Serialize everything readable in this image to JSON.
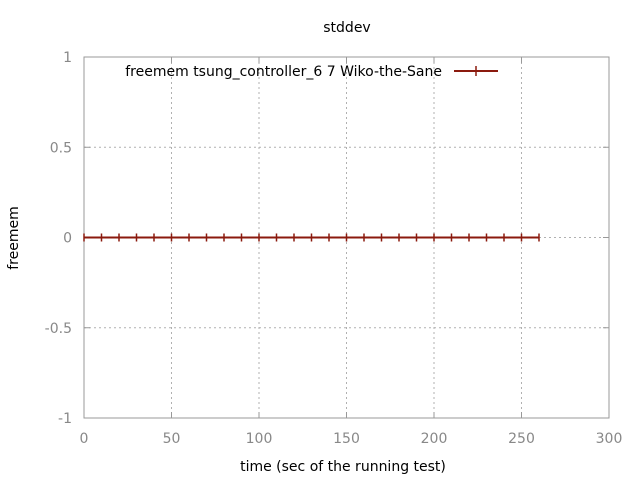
{
  "chart_data": {
    "type": "line",
    "title": "stddev",
    "xlabel": "time (sec of the running test)",
    "ylabel": "freemem",
    "xlim": [
      0,
      300
    ],
    "ylim": [
      -1,
      1
    ],
    "xticks": [
      0,
      50,
      100,
      150,
      200,
      250,
      300
    ],
    "yticks": [
      -1,
      -0.5,
      0,
      0.5,
      1
    ],
    "xtick_labels": [
      "0",
      "50",
      "100",
      "150",
      "200",
      "250",
      "300"
    ],
    "ytick_labels": [
      "-1",
      "-0.5",
      "0",
      "0.5",
      "1"
    ],
    "grid": true,
    "legend_position": "top-right",
    "series": [
      {
        "name": "freemem tsung_controller_6 7 Wiko-the-Sane",
        "color": "#8b1a0e",
        "x": [
          0,
          10,
          20,
          30,
          40,
          50,
          60,
          70,
          80,
          90,
          100,
          110,
          120,
          130,
          140,
          150,
          160,
          170,
          180,
          190,
          200,
          210,
          220,
          230,
          240,
          250,
          260
        ],
        "y": [
          0,
          0,
          0,
          0,
          0,
          0,
          0,
          0,
          0,
          0,
          0,
          0,
          0,
          0,
          0,
          0,
          0,
          0,
          0,
          0,
          0,
          0,
          0,
          0,
          0,
          0,
          0
        ]
      }
    ]
  }
}
